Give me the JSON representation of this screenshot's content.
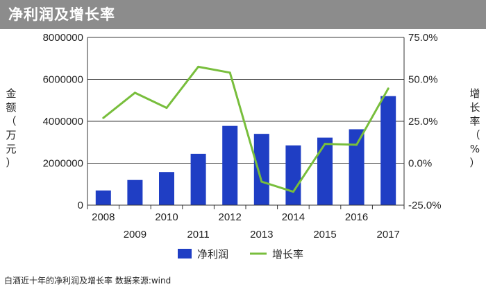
{
  "header": {
    "title": "净利润及增长率"
  },
  "caption": "白酒近十年的净利润及增长率 数据来源:wind",
  "chart_data": {
    "type": "bar",
    "categories": [
      "2008",
      "2009",
      "2010",
      "2011",
      "2012",
      "2013",
      "2014",
      "2015",
      "2016",
      "2017"
    ],
    "series": [
      {
        "name": "净利润",
        "type": "bar",
        "axis": "left",
        "color": "#1f3ec4",
        "values": [
          700000,
          1200000,
          1580000,
          2450000,
          3780000,
          3400000,
          2850000,
          3220000,
          3620000,
          5200000
        ]
      },
      {
        "name": "增长率",
        "type": "line",
        "axis": "right",
        "color": "#78be3c",
        "values": [
          27.0,
          42.0,
          33.0,
          57.5,
          54.0,
          -11.0,
          -17.0,
          11.5,
          11.0,
          44.5
        ]
      }
    ],
    "ylabel": "金额（万元）",
    "ylabel_right": "增长率（%）",
    "ylim": [
      0,
      8000000
    ],
    "ylim_right": [
      -25,
      75
    ],
    "y_ticks": [
      "0",
      "2000000",
      "4000000",
      "6000000",
      "8000000"
    ],
    "y_ticks_right": [
      "-25.0%",
      "0.0%",
      "25.0%",
      "50.0%",
      "75.0%"
    ],
    "grid": true,
    "legend_position": "bottom-center"
  }
}
